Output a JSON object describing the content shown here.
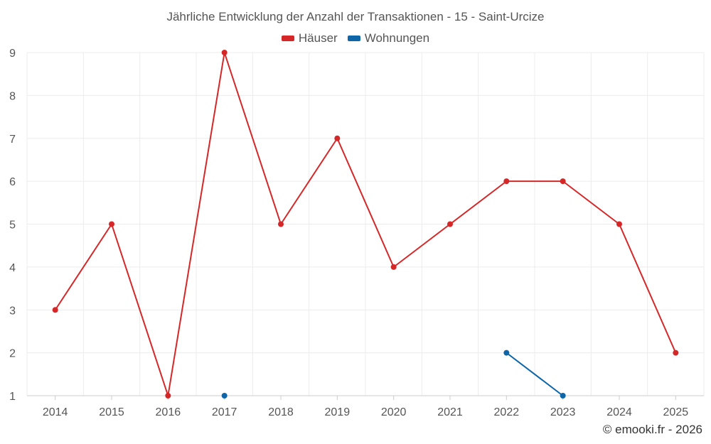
{
  "credit": "© emooki.fr - 2026",
  "chart_data": {
    "type": "line",
    "title": "Jährliche Entwicklung der Anzahl der Transaktionen - 15 - Saint-Urcize",
    "categories": [
      "2014",
      "2015",
      "2016",
      "2017",
      "2018",
      "2019",
      "2020",
      "2021",
      "2022",
      "2023",
      "2024",
      "2025"
    ],
    "series": [
      {
        "name": "Häuser",
        "color": "#d62728",
        "values": [
          3,
          5,
          1,
          9,
          5,
          7,
          4,
          5,
          6,
          6,
          5,
          2
        ]
      },
      {
        "name": "Wohnungen",
        "color": "#0e66a8",
        "values": [
          null,
          null,
          null,
          1,
          null,
          null,
          null,
          null,
          2,
          1,
          null,
          null
        ]
      }
    ],
    "yticks": [
      1,
      2,
      3,
      4,
      5,
      6,
      7,
      8,
      9
    ],
    "ylim": [
      1,
      9
    ],
    "grid": true,
    "legend_position": "top-center"
  }
}
